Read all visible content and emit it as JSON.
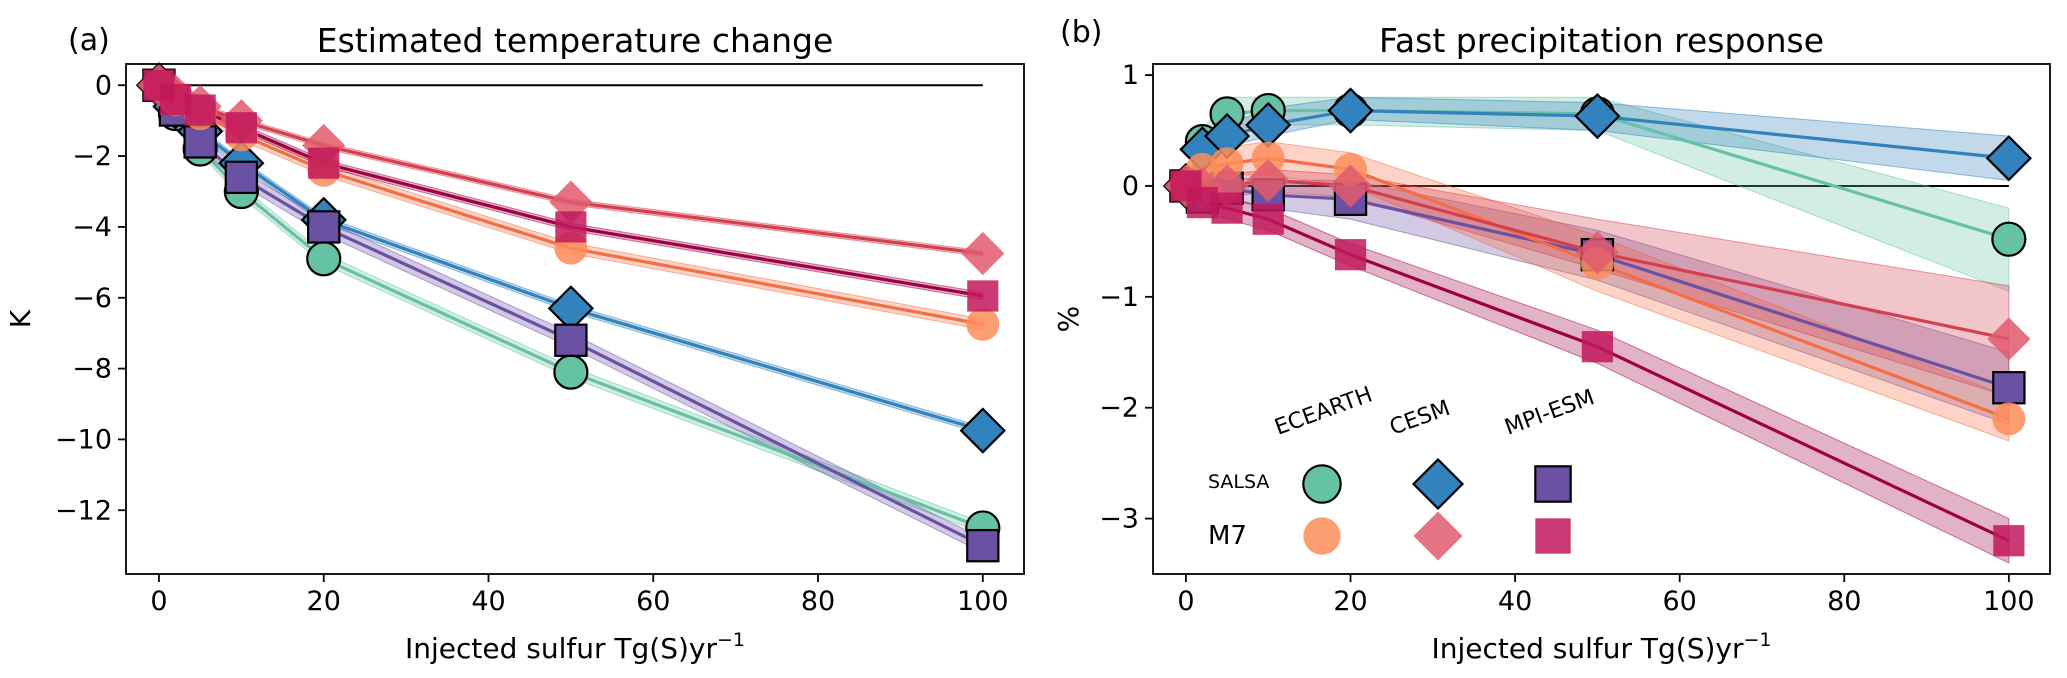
{
  "chart_data": [
    {
      "panel_label": "(a)",
      "type": "line",
      "title": "Estimated temperature change",
      "xlabel": "Injected sulfur Tg(S)yr",
      "xlabel_sup": "−1",
      "ylabel": "K",
      "xlim": [
        -4,
        105
      ],
      "ylim": [
        -13.8,
        0.6
      ],
      "xticks": [
        0,
        20,
        40,
        60,
        80,
        100
      ],
      "yticks": [
        0,
        -2,
        -4,
        -6,
        -8,
        -10,
        -12
      ],
      "ytick_labels": [
        "0",
        "−2",
        "−4",
        "−6",
        "−8",
        "−10",
        "−12"
      ],
      "zero_line": true,
      "grid": false,
      "series": [
        {
          "name": "ECEARTH SALSA",
          "color": "#66c2a5",
          "marker": "circle",
          "edge": "#000000",
          "x": [
            0,
            2,
            5,
            10,
            20,
            50,
            100
          ],
          "y": [
            0,
            -0.8,
            -1.8,
            -3.0,
            -4.9,
            -8.1,
            -12.5
          ],
          "band": 0.15
        },
        {
          "name": "CESM SALSA",
          "color": "#3182bd",
          "marker": "diamond",
          "edge": "#000000",
          "x": [
            0,
            2,
            5,
            10,
            20,
            50,
            100
          ],
          "y": [
            0,
            -0.6,
            -1.3,
            -2.2,
            -3.8,
            -6.3,
            -9.75
          ],
          "band": 0.1
        },
        {
          "name": "MPI-ESM SALSA",
          "color": "#6a51a3",
          "marker": "square",
          "edge": "#000000",
          "x": [
            0,
            2,
            5,
            10,
            20,
            50,
            100
          ],
          "y": [
            0,
            -0.7,
            -1.6,
            -2.6,
            -4.0,
            -7.2,
            -13.0
          ],
          "band": 0.2
        },
        {
          "name": "ECEARTH M7",
          "color": "#fc8d59",
          "line": "#f46d43",
          "marker": "circle",
          "edge": "none",
          "x": [
            0,
            2,
            5,
            10,
            20,
            50,
            100
          ],
          "y": [
            0,
            -0.4,
            -0.8,
            -1.4,
            -2.4,
            -4.6,
            -6.75
          ],
          "band": 0.15
        },
        {
          "name": "CESM M7",
          "color": "#e05a6e",
          "line": "#d53e4f",
          "marker": "diamond",
          "edge": "none",
          "x": [
            0,
            2,
            5,
            10,
            20,
            50,
            100
          ],
          "y": [
            0,
            -0.3,
            -0.6,
            -1.0,
            -1.7,
            -3.3,
            -4.75
          ],
          "band": 0.08
        },
        {
          "name": "MPI-ESM M7",
          "color": "#c2185b",
          "line": "#9e0142",
          "marker": "square",
          "edge": "none",
          "x": [
            0,
            2,
            5,
            10,
            20,
            50,
            100
          ],
          "y": [
            0,
            -0.4,
            -0.7,
            -1.2,
            -2.2,
            -4.0,
            -5.95
          ],
          "band": 0.1
        }
      ]
    },
    {
      "panel_label": "(b)",
      "type": "line",
      "title": "Fast precipitation response",
      "xlabel": "Injected sulfur Tg(S)yr",
      "xlabel_sup": "−1",
      "ylabel": "%",
      "xlim": [
        -4,
        105
      ],
      "ylim": [
        -3.5,
        1.1
      ],
      "xticks": [
        0,
        20,
        40,
        60,
        80,
        100
      ],
      "yticks": [
        1,
        0,
        -1,
        -2,
        -3
      ],
      "ytick_labels": [
        "1",
        "0",
        "−1",
        "−2",
        "−3"
      ],
      "zero_line": true,
      "grid": false,
      "series": [
        {
          "name": "ECEARTH SALSA",
          "color": "#66c2a5",
          "marker": "circle",
          "edge": "#000000",
          "x": [
            0,
            2,
            5,
            10,
            20,
            50,
            100
          ],
          "y": [
            0,
            0.4,
            0.65,
            0.68,
            0.68,
            0.65,
            -0.48
          ],
          "band_lo": [
            0,
            0.3,
            0.5,
            0.55,
            0.55,
            0.5,
            -0.95
          ],
          "band_hi": [
            0,
            0.5,
            0.8,
            0.8,
            0.8,
            0.8,
            -0.2
          ]
        },
        {
          "name": "CESM SALSA",
          "color": "#3182bd",
          "marker": "diamond",
          "edge": "#000000",
          "x": [
            0,
            2,
            5,
            10,
            20,
            50,
            100
          ],
          "y": [
            0,
            0.33,
            0.45,
            0.55,
            0.68,
            0.63,
            0.25
          ],
          "band_lo": [
            0,
            0.25,
            0.35,
            0.45,
            0.6,
            0.5,
            0.05
          ],
          "band_hi": [
            0,
            0.4,
            0.55,
            0.7,
            0.8,
            0.75,
            0.45
          ]
        },
        {
          "name": "MPI-ESM SALSA",
          "color": "#6a51a3",
          "marker": "square",
          "edge": "#000000",
          "x": [
            0,
            2,
            5,
            10,
            20,
            50,
            100
          ],
          "y": [
            0,
            -0.1,
            -0.02,
            -0.08,
            -0.12,
            -0.62,
            -1.82
          ],
          "band_lo": [
            0,
            -0.2,
            -0.12,
            -0.2,
            -0.3,
            -0.85,
            -2.15
          ],
          "band_hi": [
            0,
            0.0,
            0.08,
            0.05,
            0.05,
            -0.4,
            -1.5
          ]
        },
        {
          "name": "ECEARTH M7",
          "color": "#fc8d59",
          "line": "#f46d43",
          "marker": "circle",
          "edge": "none",
          "x": [
            0,
            2,
            5,
            10,
            20,
            50,
            100
          ],
          "y": [
            0,
            0.15,
            0.2,
            0.25,
            0.15,
            -0.7,
            -2.1
          ],
          "band_lo": [
            0,
            0.05,
            0.1,
            0.1,
            0.0,
            -0.95,
            -2.3
          ],
          "band_hi": [
            0,
            0.25,
            0.35,
            0.4,
            0.3,
            -0.45,
            -1.9
          ]
        },
        {
          "name": "CESM M7",
          "color": "#e05a6e",
          "line": "#d53e4f",
          "marker": "diamond",
          "edge": "none",
          "x": [
            0,
            2,
            5,
            10,
            20,
            50,
            100
          ],
          "y": [
            0,
            -0.02,
            0.0,
            0.05,
            0.0,
            -0.6,
            -1.38
          ],
          "band_lo": [
            0,
            -0.1,
            -0.1,
            -0.05,
            -0.1,
            -0.75,
            -1.9
          ],
          "band_hi": [
            0,
            0.08,
            0.1,
            0.15,
            0.1,
            -0.3,
            -0.9
          ]
        },
        {
          "name": "MPI-ESM M7",
          "color": "#c2185b",
          "line": "#9e0142",
          "marker": "square",
          "edge": "none",
          "x": [
            0,
            2,
            5,
            10,
            20,
            50,
            100
          ],
          "y": [
            0,
            -0.15,
            -0.2,
            -0.3,
            -0.62,
            -1.45,
            -3.2
          ],
          "band_lo": [
            0,
            -0.22,
            -0.3,
            -0.4,
            -0.72,
            -1.6,
            -3.4
          ],
          "band_hi": [
            0,
            -0.08,
            -0.1,
            -0.2,
            -0.52,
            -1.3,
            -3.0
          ]
        }
      ],
      "legend": {
        "placement": "lower-left",
        "columns": [
          "ECEARTH",
          "CESM",
          "MPI-ESM"
        ],
        "rows": [
          "SALSA",
          "M7"
        ]
      }
    }
  ]
}
